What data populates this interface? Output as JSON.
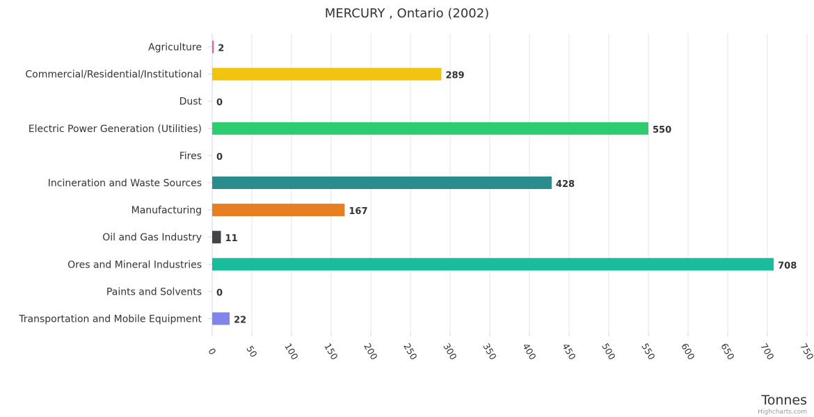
{
  "chart_data": {
    "type": "bar",
    "orientation": "horizontal",
    "title": "MERCURY , Ontario (2002)",
    "xlabel": "Tonnes",
    "ylabel": "",
    "xlim": [
      0,
      750
    ],
    "ticks": [
      "0",
      "50",
      "100",
      "150",
      "200",
      "250",
      "300",
      "350",
      "400",
      "450",
      "500",
      "550",
      "600",
      "650",
      "700",
      "750"
    ],
    "grid": true,
    "categories": [
      "Agriculture",
      "Commercial/Residential/Institutional",
      "Dust",
      "Electric Power Generation (Utilities)",
      "Fires",
      "Incineration and Waste Sources",
      "Manufacturing",
      "Oil and Gas Industry",
      "Ores and Mineral Industries",
      "Paints and Solvents",
      "Transportation and Mobile Equipment"
    ],
    "values": [
      2,
      289,
      0,
      550,
      0,
      428,
      167,
      11,
      708,
      0,
      22
    ],
    "colors": [
      "#e75fa8",
      "#f1c40f",
      "#2f7ed8",
      "#2ecc71",
      "#e74c3c",
      "#2a8c8c",
      "#e67e22",
      "#434348",
      "#1abc9c",
      "#9b59b6",
      "#8085e9"
    ]
  },
  "credits": "Highcharts.com"
}
